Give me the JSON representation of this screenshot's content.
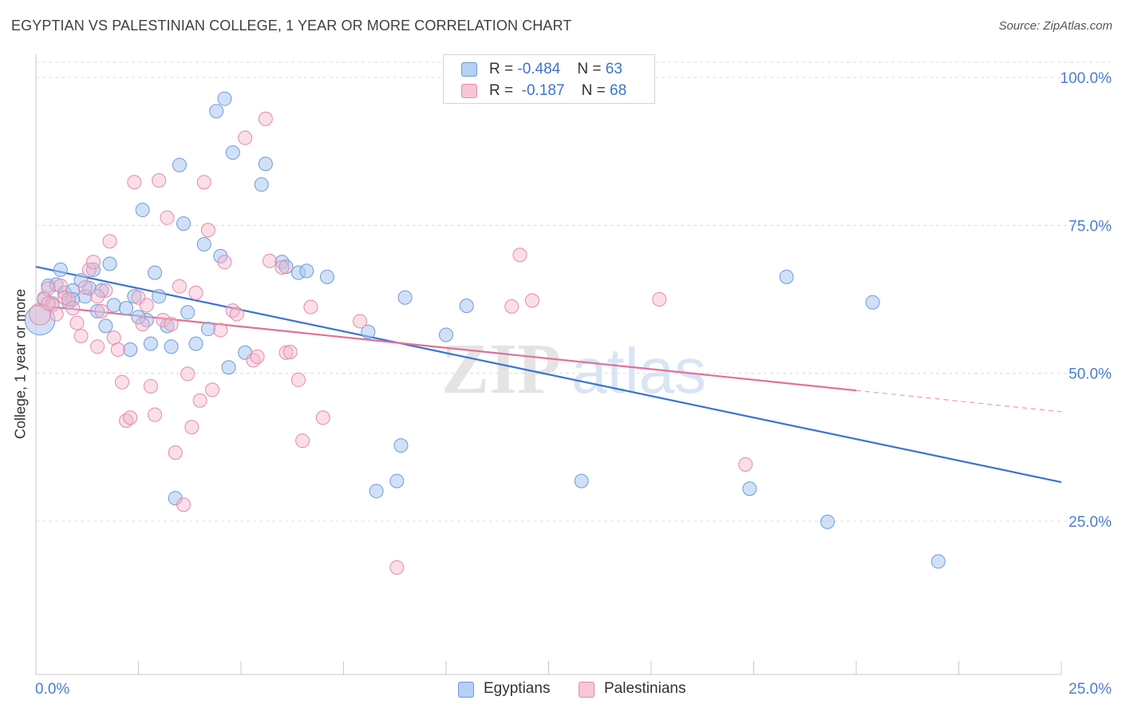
{
  "title": "EGYPTIAN VS PALESTINIAN COLLEGE, 1 YEAR OR MORE CORRELATION CHART",
  "source": "Source: ZipAtlas.com",
  "colors": {
    "blue": "#3b73d0",
    "blue_fill": "#aac8f0",
    "pink": "#e07098",
    "pink_fill": "#f5b8cc",
    "axis_label_blue": "#4a7fd0"
  },
  "legend": {
    "egyptians": {
      "r_label": "R = ",
      "r_value": "-0.484",
      "n_label": "N = ",
      "n_value": "63"
    },
    "palestinians": {
      "r_label": "R = ",
      "r_value": "-0.187",
      "n_label": "N = ",
      "n_value": "68"
    }
  },
  "bottom_legend": {
    "egyptians": "Egyptians",
    "palestinians": "Palestinians"
  },
  "chart_data": {
    "type": "scatter",
    "title": "EGYPTIAN VS PALESTINIAN COLLEGE, 1 YEAR OR MORE CORRELATION CHART",
    "xlabel": "",
    "ylabel": "College, 1 year or more",
    "x_tick_labels": [
      "0.0%",
      "25.0%"
    ],
    "y_tick_labels": [
      "100.0%",
      "75.0%",
      "50.0%",
      "25.0%"
    ],
    "xlim": [
      0,
      25
    ],
    "ylim": [
      0,
      102
    ],
    "y_ticks": [
      100,
      75,
      50,
      25
    ],
    "grid": "horizontal dashed",
    "watermark": "ZIPatlas",
    "series": [
      {
        "name": "Egyptians",
        "color": "#3b73d0",
        "r": -0.484,
        "n": 63,
        "trend": {
          "x0": 0,
          "y0": 68.0,
          "x1": 25,
          "y1": 31.6,
          "dashed_from": null
        },
        "points": [
          [
            0.1,
            59.0,
            2.2
          ],
          [
            0.2,
            62.5,
            1
          ],
          [
            0.3,
            64.8,
            1
          ],
          [
            0.4,
            61.8,
            1
          ],
          [
            0.5,
            65.0,
            1
          ],
          [
            0.6,
            67.5,
            1
          ],
          [
            0.7,
            63.6,
            1
          ],
          [
            0.8,
            62.0,
            1
          ],
          [
            0.9,
            64.0,
            1
          ],
          [
            1.2,
            63.0,
            1
          ],
          [
            1.3,
            64.4,
            1
          ],
          [
            1.4,
            67.5,
            1
          ],
          [
            1.5,
            60.5,
            1
          ],
          [
            1.6,
            64.0,
            1
          ],
          [
            1.7,
            58.0,
            1
          ],
          [
            1.8,
            68.5,
            1
          ],
          [
            1.9,
            61.5,
            1
          ],
          [
            2.2,
            61.0,
            1
          ],
          [
            2.3,
            54.0,
            1
          ],
          [
            2.4,
            63.0,
            1
          ],
          [
            2.6,
            77.6,
            1
          ],
          [
            2.7,
            59.0,
            1
          ],
          [
            2.8,
            55.0,
            1
          ],
          [
            2.9,
            67.0,
            1
          ],
          [
            3.0,
            63.0,
            1
          ],
          [
            3.2,
            58.0,
            1
          ],
          [
            3.3,
            54.5,
            1
          ],
          [
            3.4,
            28.9,
            1
          ],
          [
            3.5,
            85.2,
            1
          ],
          [
            3.6,
            75.3,
            1
          ],
          [
            3.9,
            55.0,
            1
          ],
          [
            4.1,
            71.8,
            1
          ],
          [
            4.2,
            57.5,
            1
          ],
          [
            4.4,
            94.3,
            1
          ],
          [
            4.5,
            69.8,
            1
          ],
          [
            4.6,
            96.4,
            1
          ],
          [
            4.7,
            51.0,
            1
          ],
          [
            4.8,
            87.3,
            1
          ],
          [
            5.1,
            53.5,
            1
          ],
          [
            5.5,
            81.9,
            1
          ],
          [
            5.6,
            85.4,
            1
          ],
          [
            6.0,
            68.8,
            1
          ],
          [
            6.1,
            68.0,
            1
          ],
          [
            6.4,
            67.0,
            1
          ],
          [
            6.6,
            67.3,
            1
          ],
          [
            7.1,
            66.3,
            1
          ],
          [
            8.1,
            57.0,
            1
          ],
          [
            8.3,
            30.1,
            1
          ],
          [
            8.8,
            31.8,
            1
          ],
          [
            8.9,
            37.8,
            1
          ],
          [
            9.0,
            62.8,
            1
          ],
          [
            10.0,
            56.5,
            1
          ],
          [
            10.5,
            61.4,
            1
          ],
          [
            13.3,
            31.8,
            1
          ],
          [
            17.4,
            30.5,
            1
          ],
          [
            18.3,
            66.3,
            1
          ],
          [
            19.3,
            24.9,
            1
          ],
          [
            20.4,
            62.0,
            1
          ],
          [
            22.0,
            18.2,
            1
          ],
          [
            1.1,
            65.7,
            1
          ],
          [
            0.9,
            62.5,
            1
          ],
          [
            2.5,
            59.5,
            1
          ],
          [
            3.7,
            60.3,
            1
          ]
        ]
      },
      {
        "name": "Palestinians",
        "color": "#e07098",
        "r": -0.187,
        "n": 68,
        "trend": {
          "x0": 0,
          "y0": 61.5,
          "x1": 25,
          "y1": 43.5,
          "dashed_from": 20
        },
        "points": [
          [
            0.1,
            60.0,
            1.6
          ],
          [
            0.2,
            62.7,
            1
          ],
          [
            0.3,
            64.3,
            1
          ],
          [
            0.4,
            61.5,
            1
          ],
          [
            0.5,
            60.0,
            1
          ],
          [
            0.6,
            64.8,
            1
          ],
          [
            0.7,
            62.8,
            1
          ],
          [
            0.8,
            62.5,
            1
          ],
          [
            0.9,
            61.0,
            1
          ],
          [
            1.0,
            58.5,
            1
          ],
          [
            1.1,
            56.3,
            1
          ],
          [
            1.2,
            64.5,
            1
          ],
          [
            1.3,
            67.5,
            1
          ],
          [
            1.4,
            68.8,
            1
          ],
          [
            1.5,
            54.5,
            1
          ],
          [
            1.6,
            60.5,
            1
          ],
          [
            1.7,
            64.0,
            1
          ],
          [
            1.8,
            72.3,
            1
          ],
          [
            1.9,
            56.0,
            1
          ],
          [
            2.0,
            54.0,
            1
          ],
          [
            2.1,
            48.5,
            1
          ],
          [
            2.2,
            42.0,
            1
          ],
          [
            2.3,
            42.5,
            1
          ],
          [
            2.4,
            82.3,
            1
          ],
          [
            2.5,
            62.8,
            1
          ],
          [
            2.6,
            58.3,
            1
          ],
          [
            2.7,
            61.5,
            1
          ],
          [
            2.8,
            47.8,
            1
          ],
          [
            2.9,
            43.0,
            1
          ],
          [
            3.0,
            82.6,
            1
          ],
          [
            3.1,
            59.0,
            1
          ],
          [
            3.2,
            76.3,
            1
          ],
          [
            3.3,
            58.3,
            1
          ],
          [
            3.4,
            36.6,
            1
          ],
          [
            3.5,
            64.7,
            1
          ],
          [
            3.6,
            27.8,
            1
          ],
          [
            3.7,
            49.9,
            1
          ],
          [
            3.8,
            40.9,
            1
          ],
          [
            3.9,
            63.6,
            1
          ],
          [
            4.0,
            45.4,
            1
          ],
          [
            4.1,
            82.3,
            1
          ],
          [
            4.2,
            74.2,
            1
          ],
          [
            4.3,
            47.2,
            1
          ],
          [
            4.5,
            57.3,
            1
          ],
          [
            4.6,
            68.8,
            1
          ],
          [
            4.8,
            60.6,
            1
          ],
          [
            4.9,
            60.0,
            1
          ],
          [
            5.1,
            89.8,
            1
          ],
          [
            5.3,
            52.2,
            1
          ],
          [
            5.4,
            52.8,
            1
          ],
          [
            5.6,
            93.0,
            1
          ],
          [
            5.7,
            69.0,
            1
          ],
          [
            6.0,
            67.9,
            1
          ],
          [
            6.1,
            53.5,
            1
          ],
          [
            6.2,
            53.6,
            1
          ],
          [
            6.4,
            48.9,
            1
          ],
          [
            6.5,
            38.6,
            1
          ],
          [
            6.7,
            61.2,
            1
          ],
          [
            7.0,
            42.5,
            1
          ],
          [
            7.9,
            58.8,
            1
          ],
          [
            8.8,
            17.2,
            1
          ],
          [
            11.6,
            61.3,
            1
          ],
          [
            11.8,
            70.0,
            1
          ],
          [
            12.1,
            62.3,
            1
          ],
          [
            15.2,
            62.5,
            1
          ],
          [
            17.3,
            34.6,
            1
          ],
          [
            0.3,
            61.8,
            1
          ],
          [
            1.5,
            63.0,
            1
          ]
        ]
      }
    ]
  }
}
